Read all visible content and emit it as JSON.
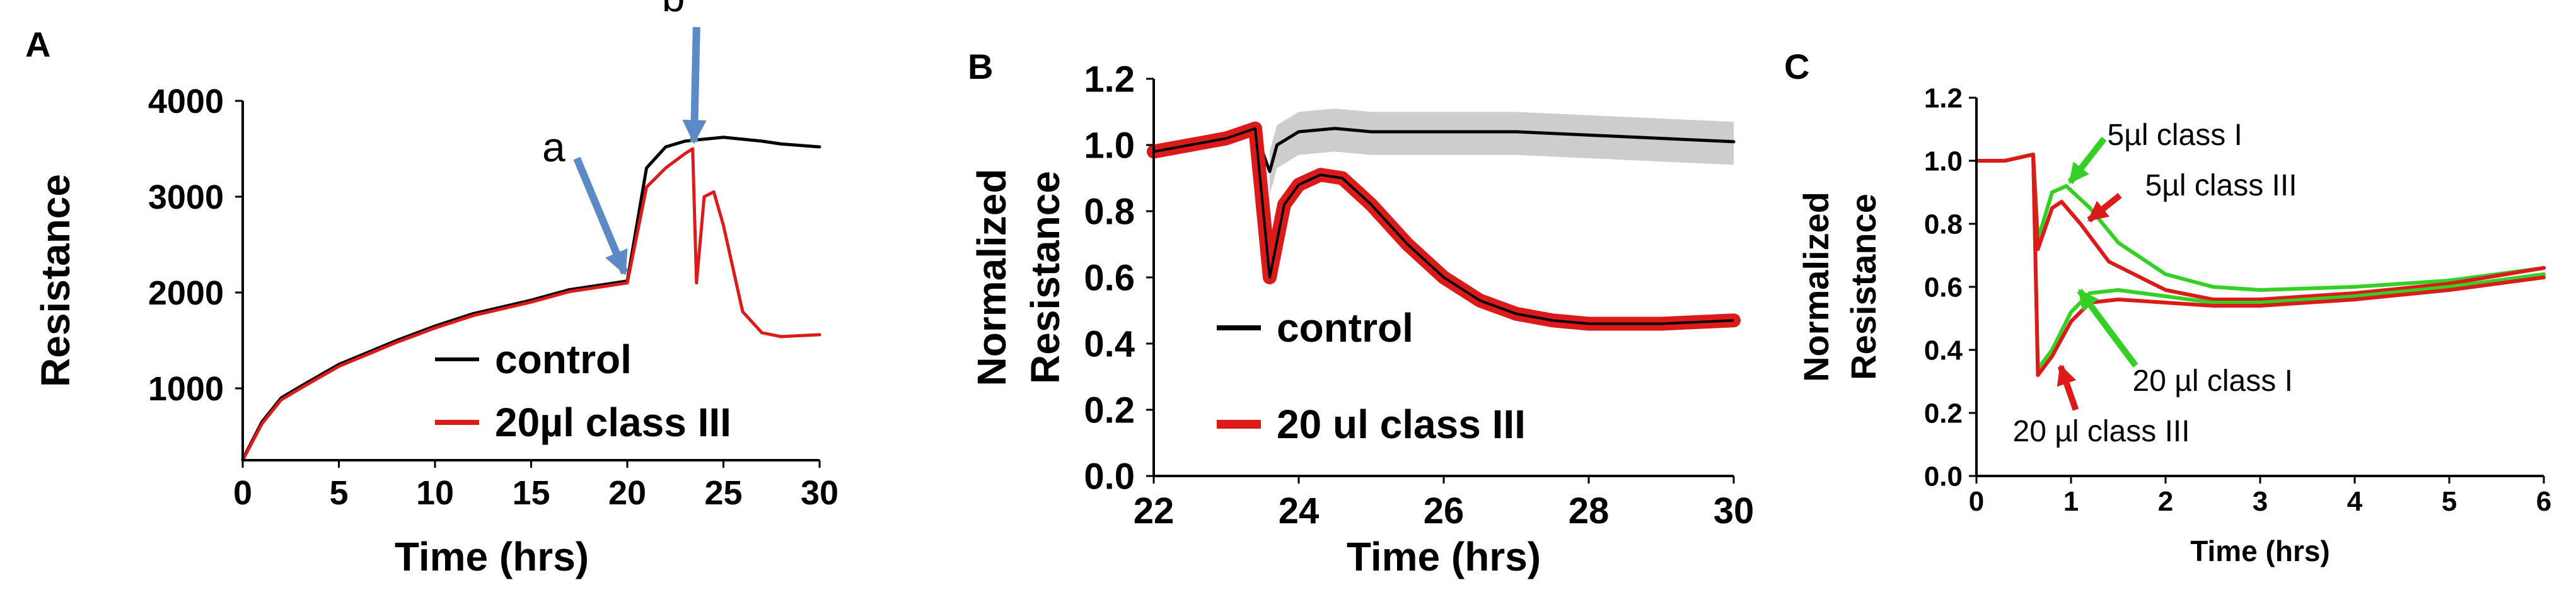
{
  "chart_data": [
    {
      "type": "line",
      "panel_label": "A",
      "xlabel": "Time (hrs)",
      "ylabel": "Resistance",
      "xlim": [
        0,
        30
      ],
      "ylim": [
        250,
        4000
      ],
      "x_ticks": [
        "0",
        "5",
        "10",
        "15",
        "20",
        "25",
        "30"
      ],
      "y_ticks": [
        "1000",
        "2000",
        "3000",
        "4000"
      ],
      "legend": {
        "placement": "bottom-right",
        "entries": [
          "control",
          "20µl class III"
        ]
      },
      "series": [
        {
          "name": "control",
          "color": "#000000",
          "x": [
            0,
            1,
            2,
            3,
            5,
            8,
            10,
            12,
            15,
            17,
            19,
            20,
            21,
            22,
            23,
            23.5,
            24,
            25,
            27,
            28,
            30
          ],
          "y": [
            260,
            650,
            900,
            1020,
            1250,
            1500,
            1650,
            1780,
            1920,
            2030,
            2090,
            2120,
            3300,
            3520,
            3580,
            3590,
            3600,
            3620,
            3580,
            3550,
            3520
          ]
        },
        {
          "name": "20µl class III",
          "color": "#dd1a1a",
          "x": [
            0,
            1,
            2,
            3,
            5,
            8,
            10,
            12,
            15,
            17,
            19,
            20,
            21,
            22,
            23,
            23.4,
            23.6,
            24,
            24.5,
            25,
            26,
            27,
            28,
            29,
            30
          ],
          "y": [
            250,
            630,
            880,
            1000,
            1230,
            1480,
            1630,
            1760,
            1900,
            2010,
            2070,
            2100,
            3100,
            3300,
            3450,
            3500,
            2100,
            3000,
            3050,
            2700,
            1800,
            1580,
            1540,
            1550,
            1560
          ]
        }
      ],
      "annotations": [
        {
          "text": "a",
          "x": 20,
          "y": 2150,
          "arrow_color": "#5b8ac6"
        },
        {
          "text": "b",
          "x": 23.6,
          "y": 3520,
          "arrow_color": "#5b8ac6"
        }
      ]
    },
    {
      "type": "line",
      "panel_label": "B",
      "xlabel": "Time (hrs)",
      "ylabel": "Normalized Resistance",
      "xlim": [
        22,
        30
      ],
      "ylim": [
        0,
        1.2
      ],
      "x_ticks": [
        "22",
        "24",
        "26",
        "28",
        "30"
      ],
      "y_ticks": [
        "0.0",
        "0.2",
        "0.4",
        "0.6",
        "0.8",
        "1.0",
        "1.2"
      ],
      "legend": {
        "placement": "bottom-left",
        "entries": [
          "control",
          "20 ul class III"
        ]
      },
      "series": [
        {
          "name": "control",
          "color": "#000000",
          "band_color": "#c8c8c8",
          "x": [
            22,
            22.5,
            23,
            23.4,
            23.6,
            23.7,
            24,
            24.5,
            25,
            26,
            27,
            28,
            29,
            30
          ],
          "y": [
            0.98,
            1.0,
            1.02,
            1.04,
            0.92,
            1.0,
            1.04,
            1.05,
            1.04,
            1.04,
            1.04,
            1.03,
            1.02,
            1.01
          ]
        },
        {
          "name": "20 ul class III",
          "color": "#dd1a1a",
          "x": [
            22,
            22.5,
            23,
            23.4,
            23.6,
            23.8,
            24,
            24.3,
            24.6,
            25,
            25.5,
            26,
            26.5,
            27,
            27.5,
            28,
            29,
            30
          ],
          "y": [
            0.98,
            1.0,
            1.02,
            1.05,
            0.6,
            0.82,
            0.88,
            0.91,
            0.9,
            0.82,
            0.7,
            0.6,
            0.53,
            0.49,
            0.47,
            0.46,
            0.46,
            0.47
          ]
        }
      ]
    },
    {
      "type": "line",
      "panel_label": "C",
      "xlabel": "Time (hrs)",
      "ylabel": "Normalized Resistance",
      "xlim": [
        0,
        6
      ],
      "ylim": [
        0,
        1.2
      ],
      "x_ticks": [
        "0",
        "1",
        "2",
        "3",
        "4",
        "5",
        "6"
      ],
      "y_ticks": [
        "0.0",
        "0.2",
        "0.4",
        "0.6",
        "0.8",
        "1.0",
        "1.2"
      ],
      "series": [
        {
          "name": "5µl class I",
          "color": "#35d025",
          "x": [
            0,
            0.3,
            0.6,
            0.65,
            0.8,
            0.95,
            1.2,
            1.5,
            2,
            2.5,
            3,
            4,
            5,
            6
          ],
          "y": [
            1.0,
            1.0,
            1.02,
            0.75,
            0.9,
            0.92,
            0.85,
            0.74,
            0.64,
            0.6,
            0.59,
            0.6,
            0.62,
            0.66
          ]
        },
        {
          "name": "5µl class III",
          "color": "#dd1a1a",
          "x": [
            0,
            0.3,
            0.6,
            0.65,
            0.8,
            0.9,
            1.1,
            1.4,
            2,
            2.5,
            3,
            4,
            5,
            6
          ],
          "y": [
            1.0,
            1.0,
            1.02,
            0.72,
            0.85,
            0.87,
            0.8,
            0.68,
            0.59,
            0.56,
            0.56,
            0.58,
            0.61,
            0.66
          ]
        },
        {
          "name": "20 µl class I",
          "color": "#35d025",
          "x": [
            0,
            0.3,
            0.6,
            0.65,
            0.8,
            1.0,
            1.2,
            1.5,
            2,
            2.5,
            3,
            4,
            5,
            6
          ],
          "y": [
            1.0,
            1.0,
            1.02,
            0.34,
            0.4,
            0.52,
            0.58,
            0.59,
            0.57,
            0.55,
            0.55,
            0.57,
            0.6,
            0.64
          ]
        },
        {
          "name": "20 µl class III",
          "color": "#dd1a1a",
          "x": [
            0,
            0.3,
            0.6,
            0.65,
            0.8,
            1.0,
            1.2,
            1.5,
            2,
            2.5,
            3,
            4,
            5,
            6
          ],
          "y": [
            1.0,
            1.0,
            1.02,
            0.32,
            0.38,
            0.49,
            0.55,
            0.56,
            0.55,
            0.54,
            0.54,
            0.56,
            0.59,
            0.63
          ]
        }
      ],
      "annotations": [
        {
          "text": "5µl class I",
          "x": 0.95,
          "y": 0.92,
          "arrow_color": "#35d025"
        },
        {
          "text": "5µl class III",
          "x": 1.15,
          "y": 0.8,
          "arrow_color": "#dd1a1a"
        },
        {
          "text": "20 µl class I",
          "x": 1.05,
          "y": 0.6,
          "arrow_color": "#35d025"
        },
        {
          "text": "20 µl class III",
          "x": 0.85,
          "y": 0.36,
          "arrow_color": "#dd1a1a"
        }
      ]
    }
  ]
}
